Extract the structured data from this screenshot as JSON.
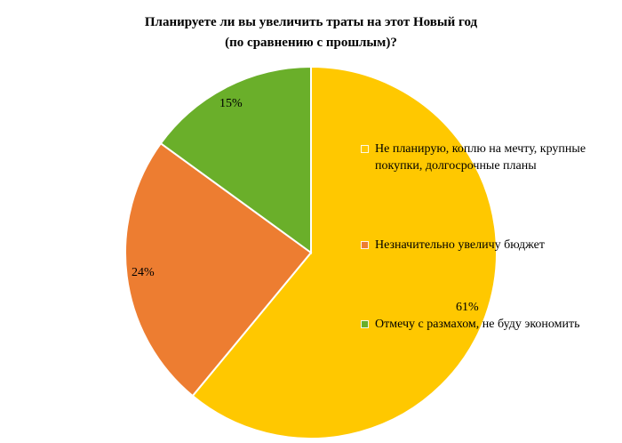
{
  "chart_data": {
    "type": "pie",
    "title": [
      "Планируете ли вы увеличить траты на этот Новый год",
      "(по сравнению с прошлым)?"
    ],
    "categories": [
      "Не планирую, коплю на мечту, крупные покупки, долгосрочные планы",
      "Незначительно увеличу бюджет",
      "Отмечу с размахом, не буду экономить"
    ],
    "values": [
      61,
      24,
      15
    ],
    "data_labels": [
      "61%",
      "24%",
      "15%"
    ],
    "colors": [
      "#FFC800",
      "#ED7D31",
      "#6AAF2A"
    ],
    "legend_position": "right",
    "start": "12 o'clock, clockwise"
  }
}
